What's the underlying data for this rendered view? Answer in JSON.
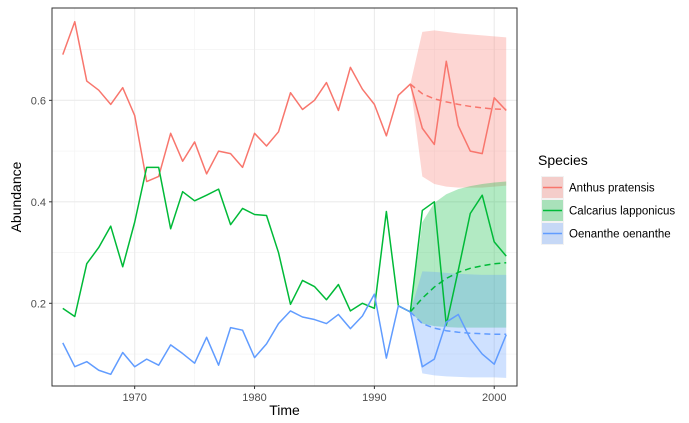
{
  "chart_data": {
    "type": "line",
    "xlabel": "Time",
    "ylabel": "Abundance",
    "xlim": [
      1963.1,
      2001.9
    ],
    "ylim": [
      0.037,
      0.782
    ],
    "x_ticks": [
      1970,
      1980,
      1990,
      2000
    ],
    "y_ticks": [
      0.2,
      0.4,
      0.6
    ],
    "y_tick_labels": [
      "0.2",
      "0.4",
      "0.6"
    ],
    "grid": true,
    "legend": {
      "title": "Species",
      "position": "right"
    },
    "years": [
      1964,
      1965,
      1966,
      1967,
      1968,
      1969,
      1970,
      1971,
      1972,
      1973,
      1974,
      1975,
      1976,
      1977,
      1978,
      1979,
      1980,
      1981,
      1982,
      1983,
      1984,
      1985,
      1986,
      1987,
      1988,
      1989,
      1990,
      1991,
      1992,
      1993,
      1994,
      1995,
      1996,
      1997,
      1998,
      1999,
      2000,
      2001
    ],
    "forecast_years": [
      1993,
      1994,
      1995,
      1996,
      1997,
      1998,
      1999,
      2000,
      2001
    ],
    "series": [
      {
        "name": "Anthus pratensis",
        "color": "#F8766D",
        "values": [
          0.69,
          0.755,
          0.638,
          0.62,
          0.592,
          0.625,
          0.57,
          0.44,
          0.45,
          0.535,
          0.48,
          0.518,
          0.455,
          0.5,
          0.495,
          0.468,
          0.535,
          0.51,
          0.538,
          0.615,
          0.582,
          0.6,
          0.635,
          0.58,
          0.665,
          0.622,
          0.592,
          0.53,
          0.61,
          0.632,
          0.545,
          0.513,
          0.677,
          0.55,
          0.5,
          0.495,
          0.605,
          0.58
        ],
        "forecast_mean": [
          0.632,
          0.613,
          0.603,
          0.597,
          0.592,
          0.588,
          0.585,
          0.583,
          0.582
        ],
        "forecast_lower": [
          0.632,
          0.45,
          0.435,
          0.43,
          0.428,
          0.428,
          0.428,
          0.43,
          0.432
        ],
        "forecast_upper": [
          0.632,
          0.735,
          0.738,
          0.735,
          0.732,
          0.73,
          0.728,
          0.726,
          0.724
        ]
      },
      {
        "name": "Calcarius lapponicus",
        "color": "#00BA38",
        "values": [
          0.19,
          0.174,
          0.278,
          0.31,
          0.352,
          0.272,
          0.36,
          0.468,
          0.468,
          0.347,
          0.42,
          0.402,
          0.413,
          0.425,
          0.355,
          0.387,
          0.375,
          0.373,
          0.3,
          0.198,
          0.245,
          0.233,
          0.207,
          0.237,
          0.185,
          0.2,
          0.19,
          0.381,
          0.195,
          0.183,
          0.383,
          0.4,
          0.157,
          0.265,
          0.377,
          0.413,
          0.321,
          0.293
        ],
        "forecast_mean": [
          0.183,
          0.21,
          0.232,
          0.249,
          0.261,
          0.269,
          0.274,
          0.278,
          0.28
        ],
        "forecast_lower": [
          0.183,
          0.16,
          0.155,
          0.153,
          0.152,
          0.152,
          0.152,
          0.152,
          0.152
        ],
        "forecast_upper": [
          0.183,
          0.36,
          0.398,
          0.415,
          0.425,
          0.431,
          0.435,
          0.438,
          0.44
        ]
      },
      {
        "name": "Oenanthe oenanthe",
        "color": "#619CFF",
        "values": [
          0.122,
          0.075,
          0.085,
          0.068,
          0.06,
          0.103,
          0.075,
          0.09,
          0.078,
          0.118,
          0.101,
          0.082,
          0.133,
          0.078,
          0.152,
          0.147,
          0.093,
          0.12,
          0.16,
          0.185,
          0.173,
          0.168,
          0.16,
          0.178,
          0.15,
          0.175,
          0.218,
          0.092,
          0.195,
          0.183,
          0.075,
          0.09,
          0.163,
          0.178,
          0.13,
          0.1,
          0.08,
          0.138
        ],
        "forecast_mean": [
          0.183,
          0.16,
          0.151,
          0.146,
          0.143,
          0.141,
          0.14,
          0.139,
          0.139
        ],
        "forecast_lower": [
          0.183,
          0.062,
          0.058,
          0.056,
          0.055,
          0.054,
          0.054,
          0.054,
          0.053
        ],
        "forecast_upper": [
          0.183,
          0.263,
          0.262,
          0.26,
          0.258,
          0.257,
          0.256,
          0.256,
          0.256
        ]
      }
    ]
  }
}
